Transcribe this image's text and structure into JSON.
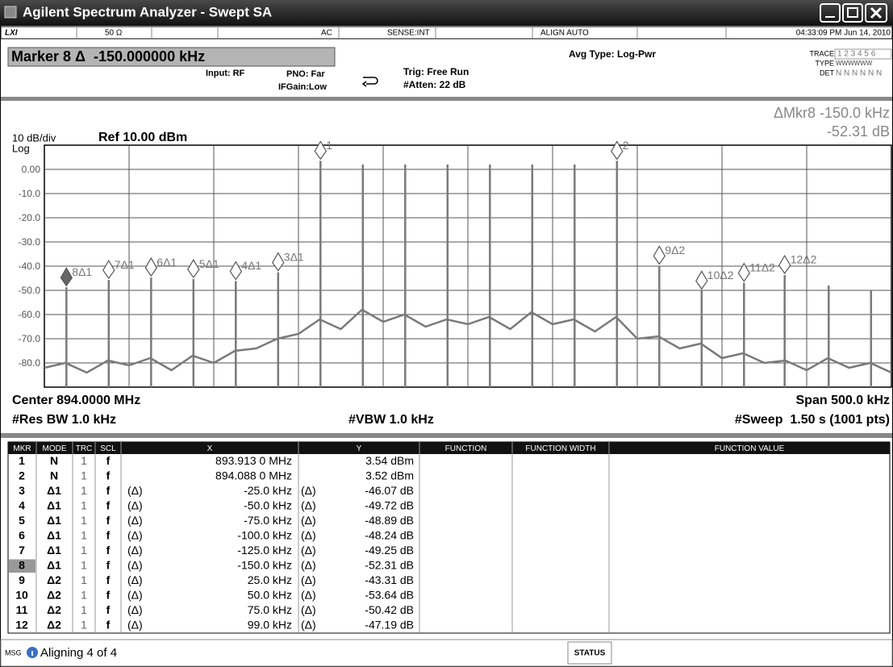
{
  "window": {
    "title": "Agilent Spectrum Analyzer - Swept SA"
  },
  "status_bar": {
    "logo": "LXI",
    "impedance": "50 Ω",
    "coupling": "AC",
    "sense": "SENSE:INT",
    "align": "ALIGN AUTO",
    "datetime": "04:33:09 PM Jun 14, 2010"
  },
  "settings": {
    "marker": "Marker 8 Δ  -150.000000 kHz",
    "input": "Input: RF",
    "pno": "PNO: Far",
    "ifgain": "IFGain:Low",
    "trig": "Trig: Free Run",
    "atten": "#Atten: 22 dB",
    "avg": "Avg Type: Log-Pwr",
    "trace_label": "TRACE",
    "trace_values": "1 2 3 4 5 6",
    "type_label": "TYPE",
    "type_values": "WWWWWW",
    "det_label": "DET",
    "det_values": "N N N N N N"
  },
  "chart_data": {
    "type": "line",
    "readout": [
      "ΔMkr8 -150.0 kHz",
      "-52.31 dB"
    ],
    "scale_label": "10 dB/div",
    "ref": "Ref 10.00 dBm",
    "scale_type": "Log",
    "xlim": [
      893.75,
      894.25
    ],
    "ylim": [
      -90,
      10
    ],
    "yticks": [
      {
        "value": 0,
        "label": "0.00"
      },
      {
        "value": -10,
        "label": "-10.0"
      },
      {
        "value": -20,
        "label": "-20.0"
      },
      {
        "value": -30,
        "label": "-30.0"
      },
      {
        "value": -40,
        "label": "-40.0"
      },
      {
        "value": -50,
        "label": "-50.0"
      },
      {
        "value": -60,
        "label": "-60.0"
      },
      {
        "value": -70,
        "label": "-70.0"
      },
      {
        "value": -80,
        "label": "-80.0"
      }
    ],
    "grid": true,
    "series": [
      {
        "style": "spikes",
        "color": "#7a7a7a",
        "x": [
          893.763,
          893.788,
          893.813,
          893.838,
          893.863,
          893.888,
          893.913,
          893.938,
          893.963,
          893.988,
          894.013,
          894.038,
          894.063,
          894.088,
          894.113,
          894.138,
          894.163,
          894.187,
          894.213,
          894.238
        ],
        "values": [
          -48.77,
          -45.71,
          -44.7,
          -45.35,
          -46.18,
          -42.53,
          3.54,
          2,
          2,
          2,
          2,
          2,
          2,
          3.52,
          -39.79,
          -50.12,
          -46.9,
          -43.67,
          -48,
          -50
        ]
      },
      {
        "style": "line",
        "color": "#7a7a7a",
        "x": [
          893.75,
          893.7625,
          893.775,
          893.7875,
          893.8,
          893.8125,
          893.825,
          893.8375,
          893.85,
          893.8625,
          893.875,
          893.8875,
          893.9,
          893.9125,
          893.925,
          893.9375,
          893.95,
          893.9625,
          893.975,
          893.9875,
          894.0,
          894.0125,
          894.025,
          894.0375,
          894.05,
          894.0625,
          894.075,
          894.0875,
          894.1,
          894.1125,
          894.125,
          894.1375,
          894.15,
          894.1625,
          894.175,
          894.1875,
          894.2,
          894.2125,
          894.225,
          894.2375,
          894.25
        ],
        "values": [
          -82,
          -80,
          -84,
          -79,
          -81,
          -78,
          -83,
          -77,
          -80,
          -75,
          -74,
          -70,
          -68,
          -62,
          -66,
          -58,
          -63,
          -60,
          -65,
          -62,
          -64,
          -61,
          -66,
          -59,
          -64,
          -62,
          -67,
          -61,
          -70,
          -69,
          -74,
          -72,
          -78,
          -76,
          -80,
          -79,
          -83,
          -78,
          -82,
          -80,
          -84
        ]
      }
    ],
    "markers": [
      {
        "label": "1",
        "x": 893.913,
        "y": 3.54
      },
      {
        "label": "2",
        "x": 894.088,
        "y": 3.52
      },
      {
        "label": "3Δ1",
        "x": 893.888,
        "y": -42.53
      },
      {
        "label": "4Δ1",
        "x": 893.863,
        "y": -46.18
      },
      {
        "label": "5Δ1",
        "x": 893.838,
        "y": -45.35
      },
      {
        "label": "6Δ1",
        "x": 893.813,
        "y": -44.7
      },
      {
        "label": "7Δ1",
        "x": 893.788,
        "y": -45.71
      },
      {
        "label": "8Δ1",
        "x": 893.763,
        "y": -48.77,
        "active": true
      },
      {
        "label": "9Δ2",
        "x": 894.113,
        "y": -39.79
      },
      {
        "label": "10Δ2",
        "x": 894.138,
        "y": -50.12
      },
      {
        "label": "11Δ2",
        "x": 894.163,
        "y": -46.9
      },
      {
        "label": "12Δ2",
        "x": 894.187,
        "y": -43.67
      }
    ],
    "annotations": {
      "center": "Center 894.0000 MHz",
      "span": "Span 500.0 kHz",
      "rbw": "#Res BW 1.0 kHz",
      "vbw": "#VBW 1.0 kHz",
      "sweep": "#Sweep  1.50 s (1001 pts)"
    }
  },
  "table": {
    "columns": [
      "MKR",
      "MODE",
      "TRC",
      "SCL",
      "X",
      "Y",
      "FUNCTION",
      "FUNCTION WIDTH",
      "FUNCTION VALUE"
    ],
    "selected_marker": "8",
    "rows": [
      [
        "1",
        "N",
        "1",
        "f",
        null,
        "893.913 0 MHz",
        null,
        "3.54 dBm"
      ],
      [
        "2",
        "N",
        "1",
        "f",
        null,
        "894.088 0 MHz",
        null,
        "3.52 dBm"
      ],
      [
        "3",
        "Δ1",
        "1",
        "f",
        "(Δ)",
        "-25.0 kHz",
        "(Δ)",
        "-46.07 dB"
      ],
      [
        "4",
        "Δ1",
        "1",
        "f",
        "(Δ)",
        "-50.0 kHz",
        "(Δ)",
        "-49.72 dB"
      ],
      [
        "5",
        "Δ1",
        "1",
        "f",
        "(Δ)",
        "-75.0 kHz",
        "(Δ)",
        "-48.89 dB"
      ],
      [
        "6",
        "Δ1",
        "1",
        "f",
        "(Δ)",
        "-100.0 kHz",
        "(Δ)",
        "-48.24 dB"
      ],
      [
        "7",
        "Δ1",
        "1",
        "f",
        "(Δ)",
        "-125.0 kHz",
        "(Δ)",
        "-49.25 dB"
      ],
      [
        "8",
        "Δ1",
        "1",
        "f",
        "(Δ)",
        "-150.0 kHz",
        "(Δ)",
        "-52.31 dB"
      ],
      [
        "9",
        "Δ2",
        "1",
        "f",
        "(Δ)",
        "25.0 kHz",
        "(Δ)",
        "-43.31 dB"
      ],
      [
        "10",
        "Δ2",
        "1",
        "f",
        "(Δ)",
        "50.0 kHz",
        "(Δ)",
        "-53.64 dB"
      ],
      [
        "11",
        "Δ2",
        "1",
        "f",
        "(Δ)",
        "75.0 kHz",
        "(Δ)",
        "-50.42 dB"
      ],
      [
        "12",
        "Δ2",
        "1",
        "f",
        "(Δ)",
        "99.0 kHz",
        "(Δ)",
        "-47.19 dB"
      ]
    ]
  },
  "message_bar": {
    "label": "MSG",
    "message": "Aligning 4 of 4",
    "status": "STATUS"
  }
}
